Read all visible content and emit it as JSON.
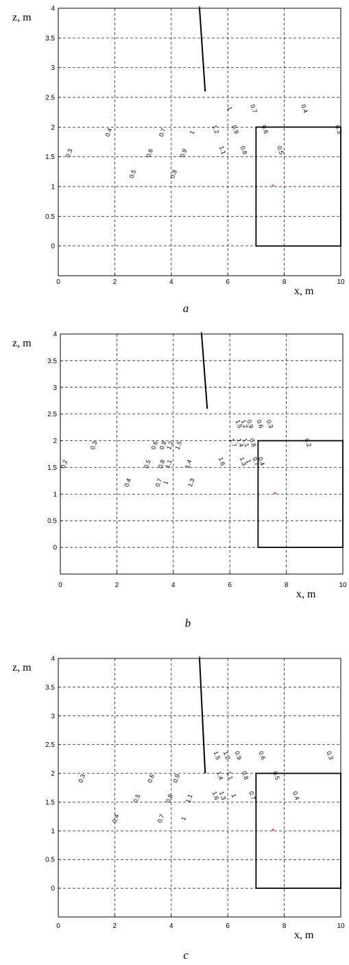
{
  "chart_data": [
    {
      "type": "contour",
      "caption": "a",
      "xlabel": "x, m",
      "ylabel": "z, m",
      "xlim": [
        0,
        10
      ],
      "ylim": [
        -0.5,
        4
      ],
      "xticks": [
        "0",
        "2",
        "4",
        "6",
        "8",
        "10"
      ],
      "yticks": [
        "0",
        "0.5",
        "1",
        "1.5",
        "2",
        "2.5",
        "3",
        "3.5",
        "4"
      ],
      "grid": "dashed",
      "electrode_line": [
        [
          5.0,
          4.0
        ],
        [
          5.2,
          2.6
        ]
      ],
      "target_box": [
        [
          7.0,
          0.0
        ],
        [
          10.0,
          2.0
        ]
      ],
      "red_marker": [
        7.6,
        1.0
      ],
      "level_labels": [
        "0.2",
        "0.3",
        "0.4",
        "0.5",
        "0.6",
        "0.7",
        "0.8",
        "0.9",
        "1",
        "1.1",
        "1.2",
        "1.3",
        "1.4",
        "1.5",
        "1.6",
        "1.7",
        "1.8",
        "1.9",
        "3",
        "4"
      ]
    },
    {
      "type": "contour",
      "caption": "b",
      "xlabel": "x, m",
      "ylabel": "z, m",
      "xlim": [
        0,
        10
      ],
      "ylim": [
        -0.5,
        4
      ],
      "xticks": [
        "0",
        "2",
        "4",
        "6",
        "8",
        "10"
      ],
      "yticks": [
        "0",
        "0.5",
        "1",
        "1.5",
        "2",
        "2.5",
        "3",
        "3.5",
        "4"
      ],
      "grid": "dashed",
      "electrode_line": [
        [
          5.0,
          4.0
        ],
        [
          5.2,
          2.6
        ]
      ],
      "target_box": [
        [
          7.0,
          0.0
        ],
        [
          10.0,
          2.0
        ]
      ],
      "red_marker": [
        7.6,
        1.0
      ],
      "level_labels": [
        "0.1",
        "0.2",
        "0.3",
        "0.4",
        "0.5",
        "0.6",
        "0.7",
        "0.8",
        "0.9",
        "1",
        "1.1",
        "1.2",
        "1.3",
        "1.4",
        "1.5",
        "1.6",
        "1.7",
        "1.8",
        "1.9",
        "3",
        "4"
      ]
    },
    {
      "type": "contour",
      "caption": "c",
      "xlabel": "x, m",
      "ylabel": "z, m",
      "xlim": [
        0,
        10
      ],
      "ylim": [
        -0.5,
        4
      ],
      "xticks": [
        "0",
        "2",
        "4",
        "6",
        "8",
        "10"
      ],
      "yticks": [
        "0",
        "0.5",
        "1",
        "1.5",
        "2",
        "2.5",
        "3",
        "3.5",
        "4"
      ],
      "grid": "dashed",
      "electrode_line": [
        [
          5.0,
          4.0
        ],
        [
          5.2,
          2.0
        ]
      ],
      "target_box": [
        [
          7.0,
          0.0
        ],
        [
          10.0,
          2.0
        ]
      ],
      "red_marker": [
        7.6,
        1.0
      ],
      "level_labels": [
        "0.1",
        "0.2",
        "0.3",
        "0.4",
        "0.5",
        "0.6",
        "0.7",
        "0.8",
        "0.9",
        "1",
        "1.1",
        "1.2",
        "1.3",
        "1.4",
        "1.5",
        "1.6",
        "1.7",
        "1.8",
        "1.9",
        "3",
        "4"
      ]
    }
  ]
}
